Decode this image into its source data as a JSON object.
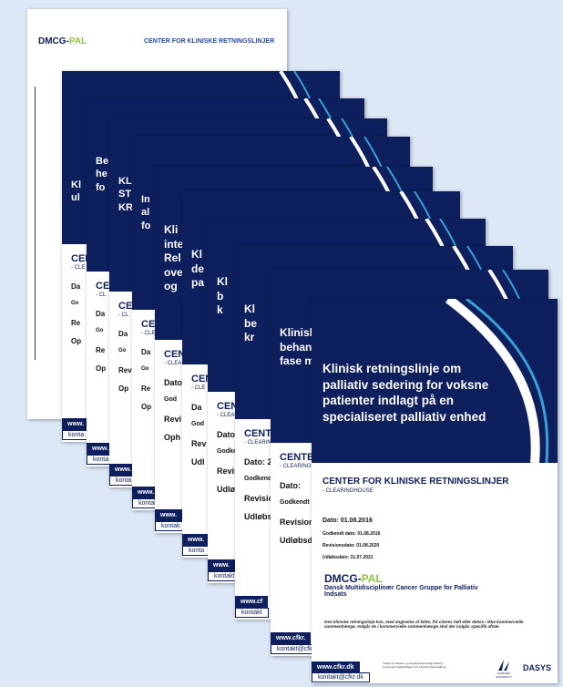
{
  "top_card": {
    "logo_a": "DMCG-",
    "logo_b": "PAL",
    "center": "CENTER FOR KLINISKE RETNINGSLINJER"
  },
  "back_cards": [
    {
      "title": [
        "Kl",
        "ul"
      ],
      "center": "CENTER",
      "sub": "- CLE",
      "fields": [
        "Da",
        "Go",
        "Re",
        "Op"
      ],
      "footer": [
        "www.",
        "konta"
      ]
    },
    {
      "title": [
        "Be",
        "he",
        "fo"
      ],
      "center": "CEN",
      "sub": "- CL",
      "fields": [
        "Da",
        "Go",
        "Re",
        "Op"
      ],
      "footer": [
        "www.",
        "konta"
      ]
    },
    {
      "title": [
        "KL",
        "ST",
        "KR"
      ],
      "center": "CEN",
      "sub": "- CL",
      "fields": [
        "Da",
        "Go",
        "Rev",
        "Op"
      ],
      "footer": [
        "www.",
        "konta"
      ]
    },
    {
      "title": [
        "In",
        "al",
        "fo"
      ],
      "center": "CEN",
      "sub": "- CLE",
      "fields": [
        "Da",
        "Go",
        "Re",
        "Op"
      ],
      "footer": [
        "www.",
        "kontak"
      ]
    },
    {
      "title": [
        "Kli",
        "inte",
        "Rel",
        "ove",
        "og"
      ],
      "center": "CEN",
      "sub": "- CLEA",
      "fields": [
        "Dato",
        "God",
        "Revi",
        "Oph"
      ],
      "footer": [
        "www.",
        "kontak"
      ]
    },
    {
      "title": [
        "Kl",
        "de",
        "pa"
      ],
      "center": "CEN",
      "sub": "- CLE",
      "fields": [
        "Da",
        "God",
        "Rev",
        "Udl"
      ],
      "footer": [
        "www.",
        "konta"
      ]
    },
    {
      "title": [
        "Kl",
        "b",
        "k"
      ],
      "center": "CENT",
      "sub": "- CLEARI",
      "fields": [
        "Dato:",
        "Godken",
        "Revision",
        "Udløbsd"
      ],
      "footer": [
        "www.",
        "kontakt"
      ]
    },
    {
      "title": [
        "Kl",
        "be",
        "kr"
      ],
      "center": "CENTER",
      "sub": "- CLEARING",
      "fields": [
        "Dato: 2",
        "Godkenc",
        "Revision",
        "Udløbsda"
      ],
      "footer": [
        "www.cf",
        "kontakt"
      ]
    },
    {
      "title": [
        "Klinisk",
        "behand",
        "fase m"
      ],
      "center": "CENTER",
      "sub": "- CLEARINGH",
      "fields": [
        "Dato:",
        "Godkendt da",
        "Revisionsda",
        "Udløbsdato:"
      ],
      "footer": [
        "www.cfkr.",
        "kontakt@cfkr"
      ]
    }
  ],
  "front_card": {
    "title": "Klinisk retningslinje om palliativ sedering for voksne patienter indlagt på en specialiseret palliativ enhed",
    "center": "CENTER FOR KLINISKE RETNINGSLINJER",
    "sub": "- CLEARINGHOUSE",
    "date": "Dato: 01.08.2016",
    "approved": "Godkendt dato: 01.08.2016",
    "revision": "Revisionsdato: 01.08.2020",
    "expiry": "Udløbsdato: 31.07.2021",
    "logo_a": "DMCG-",
    "logo_b": "PAL",
    "org": "Dansk Multidisciplinær Cancer Gruppe for Palliativ Indsats",
    "note": "Den kliniske retningslinje kan, med angivelse af kilde, frit citeres helt eller delvis i ikke kommercielle sammenhænge. Indgår de i kommercielle sammenhænge skal der indgås specifik aftale.",
    "web": "www.cfkr.dk",
    "mail": "kontakt@cfkr.dk",
    "address": "Institut for Medicin og Sundhedsteknologi Aalborg Universitet Fredrik Bajers Vej 7 E4 DK-9220 Aalborg",
    "aau": "AALBORG UNIVERSITY",
    "dasys": "DASYS"
  }
}
